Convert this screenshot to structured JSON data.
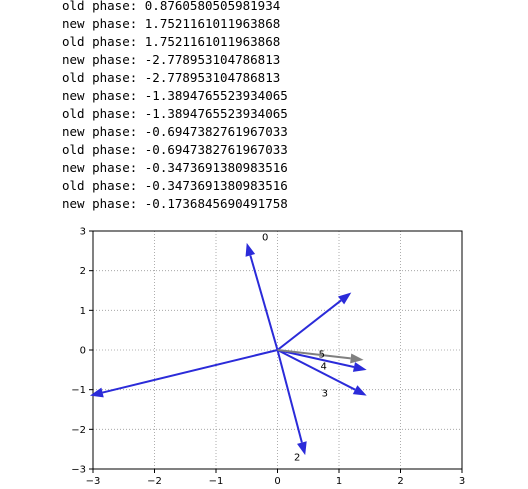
{
  "console": {
    "lines": [
      "old phase: 0.8760580505981934",
      "new phase: 1.7521161011963868",
      "old phase: 1.7521161011963868",
      "new phase: -2.778953104786813",
      "old phase: -2.778953104786813",
      "new phase: -1.3894765523934065",
      "old phase: -1.3894765523934065",
      "new phase: -0.6947382761967033",
      "old phase: -0.6947382761967033",
      "new phase: -0.3473691380983516",
      "old phase: -0.3473691380983516",
      "new phase: -0.1736845690491758"
    ]
  },
  "chart_data": {
    "type": "quiver",
    "xlim": [
      -3,
      3
    ],
    "ylim": [
      -3,
      3
    ],
    "xticks": [
      "−3",
      "−2",
      "−1",
      "0",
      "1",
      "2",
      "3"
    ],
    "yticks": [
      "3",
      "2",
      "1",
      "0",
      "−1",
      "−2",
      "−3"
    ],
    "grid": true,
    "grid_style": "dotted",
    "vectors": [
      {
        "x": -0.5,
        "y": 2.7,
        "color": "#2b2bd9"
      },
      {
        "x": 1.2,
        "y": 1.45,
        "color": "#2b2bd9"
      },
      {
        "x": 0.45,
        "y": -2.65,
        "color": "#2b2bd9"
      },
      {
        "x": 1.45,
        "y": -1.15,
        "color": "#2b2bd9"
      },
      {
        "x": 1.45,
        "y": -0.5,
        "color": "#2b2bd9"
      },
      {
        "x": 1.4,
        "y": -0.25,
        "color": "#808080"
      },
      {
        "x": -3.05,
        "y": -1.15,
        "color": "#2b2bd9"
      }
    ],
    "labels": [
      {
        "text": "0",
        "x": -0.2,
        "y": 2.85
      },
      {
        "text": "2",
        "x": 0.32,
        "y": -2.7
      },
      {
        "text": "3",
        "x": 0.77,
        "y": -1.08
      },
      {
        "text": "4",
        "x": 0.75,
        "y": -0.4
      },
      {
        "text": "5",
        "x": 0.72,
        "y": -0.1
      }
    ]
  }
}
